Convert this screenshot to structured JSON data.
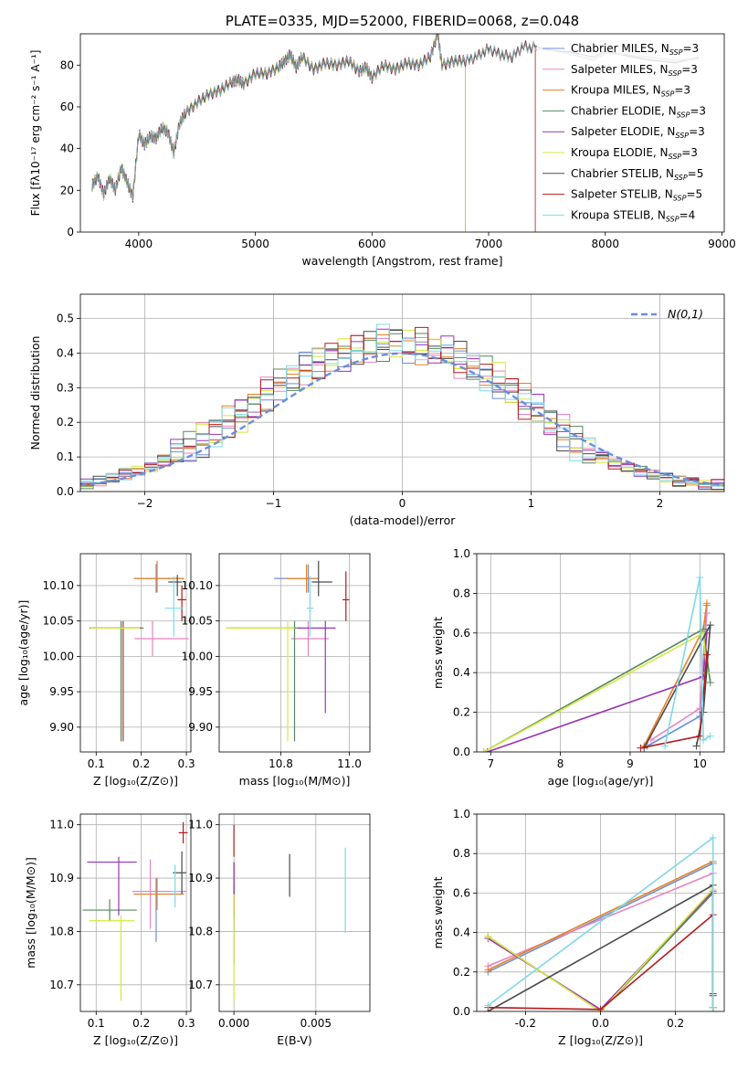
{
  "chart_data": [
    {
      "id": "spectrum",
      "type": "line",
      "title": "PLATE=0335, MJD=52000, FIBERID=0068, z=0.048",
      "xlabel": "wavelength [Angstrom, rest frame]",
      "ylabel": "Flux [fλ10⁻¹⁷ erg cm⁻² s⁻¹ A⁻¹]",
      "xlim": [
        3500,
        9020
      ],
      "ylim": [
        0,
        95
      ],
      "xticks": [
        4000,
        5000,
        6000,
        7000,
        8000,
        9000
      ],
      "yticks": [
        0,
        20,
        40,
        60,
        80
      ],
      "legend_position": "right",
      "data_color": "#808080",
      "data_x": [
        3600,
        3650,
        3700,
        3750,
        3800,
        3850,
        3900,
        3950,
        4000,
        4050,
        4100,
        4150,
        4200,
        4250,
        4300,
        4350,
        4400,
        4500,
        4600,
        4700,
        4800,
        4850,
        4900,
        5000,
        5100,
        5200,
        5250,
        5300,
        5350,
        5400,
        5500,
        5600,
        5700,
        5800,
        5890,
        5950,
        6000,
        6100,
        6200,
        6300,
        6400,
        6500,
        6563,
        6600,
        6700,
        6800,
        6900,
        7000,
        7100,
        7200,
        7300,
        7400
      ],
      "data_y": [
        22,
        27,
        18,
        26,
        20,
        31,
        24,
        17,
        47,
        42,
        46,
        45,
        50,
        48,
        38,
        52,
        57,
        62,
        66,
        68,
        72,
        73,
        71,
        76,
        76,
        79,
        82,
        85,
        79,
        84,
        78,
        81,
        80,
        82,
        77,
        79,
        74,
        80,
        78,
        81,
        80,
        84,
        95,
        80,
        82,
        82,
        84,
        88,
        85,
        84,
        89,
        88
      ],
      "series": [
        {
          "name": "Chabrier MILES, N_SSP=3",
          "color": "#6a8ede",
          "cutoff": null
        },
        {
          "name": "Salpeter MILES, N_SSP=3",
          "color": "#e882c0",
          "cutoff": null
        },
        {
          "name": "Kroupa MILES, N_SSP=3",
          "color": "#e8801e",
          "cutoff": null
        },
        {
          "name": "Chabrier ELODIE, N_SSP=3",
          "color": "#55885d",
          "cutoff": 6800
        },
        {
          "name": "Salpeter ELODIE, N_SSP=3",
          "color": "#9933b3",
          "cutoff": 6800
        },
        {
          "name": "Kroupa ELODIE, N_SSP=3",
          "color": "#d4e83e",
          "cutoff": 6800
        },
        {
          "name": "Chabrier STELIB, N_SSP=5",
          "color": "#4a4a4a",
          "cutoff": null
        },
        {
          "name": "Salpeter STELIB, N_SSP=5",
          "color": "#b31a1a",
          "cutoff": 7400
        },
        {
          "name": "Kroupa STELIB, N_SSP=4",
          "color": "#7fd8e6",
          "cutoff": null
        }
      ]
    },
    {
      "id": "histogram",
      "type": "line",
      "xlabel": "(data-model)/error",
      "ylabel": "Normed distribution",
      "xlim": [
        -2.5,
        2.5
      ],
      "ylim": [
        0,
        0.57
      ],
      "xticks": [
        -2,
        -1,
        0,
        1,
        2
      ],
      "yticks": [
        0.0,
        0.1,
        0.2,
        0.3,
        0.4,
        0.5
      ],
      "grid": true,
      "reference": {
        "label": "N(0,1)",
        "color": "#6a8ede"
      },
      "bin_width": 0.1,
      "bin_start": -2.5,
      "base_values": [
        0.02,
        0.03,
        0.04,
        0.05,
        0.06,
        0.07,
        0.09,
        0.11,
        0.13,
        0.15,
        0.17,
        0.2,
        0.22,
        0.25,
        0.28,
        0.31,
        0.33,
        0.35,
        0.37,
        0.39,
        0.4,
        0.41,
        0.42,
        0.43,
        0.43,
        0.42,
        0.42,
        0.41,
        0.4,
        0.38,
        0.36,
        0.34,
        0.32,
        0.29,
        0.26,
        0.23,
        0.2,
        0.17,
        0.14,
        0.12,
        0.1,
        0.08,
        0.07,
        0.06,
        0.05,
        0.04,
        0.03,
        0.03,
        0.02,
        0.02
      ]
    },
    {
      "id": "age-vs-Z",
      "type": "scatter",
      "xlabel": "Z [log₁₀(Z/Z⊙)]",
      "ylabel": "age  [log₁₀(age/yr)]",
      "xlim": [
        0.065,
        0.31
      ],
      "ylim": [
        9.865,
        10.145
      ],
      "xticks": [
        0.1,
        0.2,
        0.3
      ],
      "yticks": [
        9.9,
        9.95,
        10.0,
        10.05,
        10.1
      ],
      "grid": true,
      "points": [
        {
          "x": 0.233,
          "y": 10.11,
          "xerr": [
            0.05,
            0.06
          ],
          "yerr": [
            0.02,
            0.02
          ]
        },
        {
          "x": 0.225,
          "y": 10.025,
          "xerr": [
            0.04,
            0.08
          ],
          "yerr": [
            0.025,
            0.025
          ]
        },
        {
          "x": 0.235,
          "y": 10.11,
          "xerr": [
            0.05,
            0.06
          ],
          "yerr": [
            0.02,
            0.025
          ]
        },
        {
          "x": 0.155,
          "y": 10.04,
          "xerr": [
            0.07,
            0.05
          ],
          "yerr": [
            0.16,
            0.01
          ]
        },
        {
          "x": 0.16,
          "y": 10.04,
          "xerr": [
            0.07,
            0.04
          ],
          "yerr": [
            0.16,
            0.01
          ]
        },
        {
          "x": 0.157,
          "y": 10.04,
          "xerr": [
            0.07,
            0.04
          ],
          "yerr": [
            0.16,
            0.01
          ]
        },
        {
          "x": 0.28,
          "y": 10.105,
          "xerr": [
            0.02,
            0.01
          ],
          "yerr": [
            0.02,
            0.01
          ]
        },
        {
          "x": 0.29,
          "y": 10.08,
          "xerr": [
            0.01,
            0.01
          ],
          "yerr": [
            0.03,
            0.02
          ]
        },
        {
          "x": 0.272,
          "y": 10.068,
          "xerr": [
            0.02,
            0.02
          ],
          "yerr": [
            0.04,
            0.045
          ]
        }
      ]
    },
    {
      "id": "age-vs-mass",
      "type": "scatter",
      "xlabel": "mass [log₁₀(M/M⊙)]",
      "ylabel": "",
      "xlim": [
        10.62,
        11.06
      ],
      "ylim": [
        9.865,
        10.145
      ],
      "xticks": [
        10.8,
        11.0
      ],
      "yticks": [
        9.9,
        9.95,
        10.0,
        10.05,
        10.1
      ],
      "grid": true,
      "points": [
        {
          "x": 10.88,
          "y": 10.11,
          "xerr": [
            0.1,
            0.03
          ],
          "yerr": [
            0.02,
            0.02
          ]
        },
        {
          "x": 10.88,
          "y": 10.025,
          "xerr": [
            0.05,
            0.06
          ],
          "yerr": [
            0.025,
            0.025
          ]
        },
        {
          "x": 10.875,
          "y": 10.11,
          "xerr": [
            0.06,
            0.03
          ],
          "yerr": [
            0.02,
            0.02
          ]
        },
        {
          "x": 10.84,
          "y": 10.04,
          "xerr": [
            0.2,
            0.02
          ],
          "yerr": [
            0.16,
            0.01
          ]
        },
        {
          "x": 10.93,
          "y": 10.04,
          "xerr": [
            0.08,
            0.03
          ],
          "yerr": [
            0.12,
            0.01
          ]
        },
        {
          "x": 10.82,
          "y": 10.04,
          "xerr": [
            0.18,
            0.02
          ],
          "yerr": [
            0.16,
            0.01
          ]
        },
        {
          "x": 10.91,
          "y": 10.105,
          "xerr": [
            0.02,
            0.04
          ],
          "yerr": [
            0.02,
            0.03
          ]
        },
        {
          "x": 10.99,
          "y": 10.08,
          "xerr": [
            0.01,
            0.01
          ],
          "yerr": [
            0.03,
            0.04
          ]
        },
        {
          "x": 10.885,
          "y": 10.068,
          "xerr": [
            0.01,
            0.01
          ],
          "yerr": [
            0.04,
            0.045
          ]
        }
      ]
    },
    {
      "id": "mass-weight-vs-age",
      "type": "line",
      "xlabel": "age  [log₁₀(age/yr)]",
      "ylabel": "mass weight",
      "xlim": [
        6.8,
        10.35
      ],
      "ylim": [
        0,
        1.0
      ],
      "xticks": [
        7,
        8,
        9,
        10
      ],
      "yticks": [
        0.0,
        0.2,
        0.4,
        0.6,
        0.8,
        1.0
      ],
      "grid": true,
      "lines": [
        {
          "x": [
            9.25,
            10.0,
            10.1
          ],
          "y": [
            0.03,
            0.18,
            0.74
          ]
        },
        {
          "x": [
            9.3,
            10.0,
            10.1
          ],
          "y": [
            0.06,
            0.22,
            0.7
          ]
        },
        {
          "x": [
            9.2,
            10.05,
            10.1
          ],
          "y": [
            0.03,
            0.62,
            0.75
          ]
        },
        {
          "x": [
            6.9,
            10.05,
            10.15
          ],
          "y": [
            0.0,
            0.62,
            0.35
          ]
        },
        {
          "x": [
            6.95,
            10.05,
            10.1
          ],
          "y": [
            0.0,
            0.38,
            0.6
          ]
        },
        {
          "x": [
            6.9,
            10.05,
            10.1
          ],
          "y": [
            0.0,
            0.6,
            0.4
          ]
        },
        {
          "x": [
            9.2,
            10.15,
            10.05,
            9.95
          ],
          "y": [
            0.02,
            0.64,
            0.2,
            0.03
          ]
        },
        {
          "x": [
            9.15,
            10.0,
            10.1
          ],
          "y": [
            0.02,
            0.08,
            0.49
          ]
        },
        {
          "x": [
            9.5,
            10.0,
            10.05,
            10.15
          ],
          "y": [
            0.03,
            0.88,
            0.06,
            0.08
          ]
        }
      ]
    },
    {
      "id": "mass-vs-Z",
      "type": "scatter",
      "xlabel": "Z [log₁₀(Z/Z⊙)]",
      "ylabel": "mass [log₁₀(M/M⊙)]",
      "xlim": [
        0.065,
        0.31
      ],
      "ylim": [
        10.65,
        11.02
      ],
      "xticks": [
        0.1,
        0.2,
        0.3
      ],
      "yticks": [
        10.7,
        10.8,
        10.9,
        11.0
      ],
      "grid": true,
      "points": [
        {
          "x": 0.233,
          "y": 10.87,
          "xerr": [
            0.05,
            0.06
          ],
          "yerr": [
            0.09,
            0.03
          ]
        },
        {
          "x": 0.22,
          "y": 10.875,
          "xerr": [
            0.04,
            0.08
          ],
          "yerr": [
            0.07,
            0.06
          ]
        },
        {
          "x": 0.235,
          "y": 10.87,
          "xerr": [
            0.05,
            0.06
          ],
          "yerr": [
            0.03,
            0.03
          ]
        },
        {
          "x": 0.13,
          "y": 10.84,
          "xerr": [
            0.06,
            0.06
          ],
          "yerr": [
            0.02,
            0.02
          ]
        },
        {
          "x": 0.15,
          "y": 10.93,
          "xerr": [
            0.07,
            0.04
          ],
          "yerr": [
            0.1,
            0.01
          ]
        },
        {
          "x": 0.155,
          "y": 10.82,
          "xerr": [
            0.07,
            0.03
          ],
          "yerr": [
            0.15,
            0.01
          ]
        },
        {
          "x": 0.29,
          "y": 10.91,
          "xerr": [
            0.02,
            0.01
          ],
          "yerr": [
            0.04,
            0.04
          ]
        },
        {
          "x": 0.293,
          "y": 10.985,
          "xerr": [
            0.01,
            0.01
          ],
          "yerr": [
            0.02,
            0.02
          ]
        },
        {
          "x": 0.275,
          "y": 10.875,
          "xerr": [
            0.01,
            0.01
          ],
          "yerr": [
            0.03,
            0.05
          ]
        }
      ]
    },
    {
      "id": "mass-vs-ebv",
      "type": "scatter",
      "xlabel": "E(B-V)",
      "ylabel": "",
      "xlim": [
        -0.0009,
        0.0083
      ],
      "ylim": [
        10.65,
        11.02
      ],
      "xticks": [
        0.0,
        0.005
      ],
      "xtick_labels": [
        "0.000",
        "0.005"
      ],
      "yticks": [
        10.7,
        10.8,
        10.9,
        11.0
      ],
      "grid": true,
      "points": [
        {
          "x": 0.0,
          "y": 10.87,
          "xerr": [
            0,
            0
          ],
          "yerr": [
            0.05,
            0.05
          ]
        },
        {
          "x": 0.0,
          "y": 10.88,
          "xerr": [
            0,
            0
          ],
          "yerr": [
            0.05,
            0.05
          ]
        },
        {
          "x": 0.0,
          "y": 10.88,
          "xerr": [
            0,
            0
          ],
          "yerr": [
            0.05,
            0.05
          ]
        },
        {
          "x": 0.0,
          "y": 10.84,
          "xerr": [
            0,
            0
          ],
          "yerr": [
            0.1,
            0.05
          ]
        },
        {
          "x": 0.0,
          "y": 10.88,
          "xerr": [
            0,
            0
          ],
          "yerr": [
            0.05,
            0.05
          ]
        },
        {
          "x": 0.0,
          "y": 10.82,
          "xerr": [
            0,
            0
          ],
          "yerr": [
            0.15,
            0.05
          ]
        },
        {
          "x": 0.0034,
          "y": 10.905,
          "xerr": [
            0,
            0
          ],
          "yerr": [
            0.04,
            0.04
          ]
        },
        {
          "x": 0.0,
          "y": 10.97,
          "xerr": [
            0,
            0
          ],
          "yerr": [
            0.03,
            0.03
          ]
        },
        {
          "x": 0.0068,
          "y": 10.877,
          "xerr": [
            0,
            0
          ],
          "yerr": [
            0.08,
            0.08
          ]
        }
      ]
    },
    {
      "id": "mass-weight-vs-Z",
      "type": "line",
      "xlabel": "Z [log₁₀(Z/Z⊙)]",
      "ylabel": "mass weight",
      "xlim": [
        -0.33,
        0.33
      ],
      "ylim": [
        0,
        1.0
      ],
      "xticks": [
        -0.2,
        0.0,
        0.2
      ],
      "yticks": [
        0.0,
        0.2,
        0.4,
        0.6,
        0.8,
        1.0
      ],
      "grid": true,
      "lines": [
        {
          "x": [
            -0.3,
            0.3,
            0.3
          ],
          "y": [
            0.2,
            0.75,
            0.02
          ]
        },
        {
          "x": [
            -0.3,
            0.3,
            0.3
          ],
          "y": [
            0.23,
            0.7,
            0.02
          ]
        },
        {
          "x": [
            -0.3,
            0.3,
            0.3
          ],
          "y": [
            0.21,
            0.76,
            0.02
          ]
        },
        {
          "x": [
            -0.3,
            0.0,
            0.3,
            0.3
          ],
          "y": [
            0.38,
            0.0,
            0.6,
            0.0
          ]
        },
        {
          "x": [
            -0.3,
            0.0,
            0.3,
            0.3
          ],
          "y": [
            0.37,
            0.01,
            0.61,
            0.02
          ]
        },
        {
          "x": [
            -0.3,
            0.0,
            0.3,
            0.3
          ],
          "y": [
            0.38,
            0.0,
            0.62,
            0.02
          ]
        },
        {
          "x": [
            -0.3,
            0.3,
            0.3
          ],
          "y": [
            0.0,
            0.64,
            0.09
          ]
        },
        {
          "x": [
            -0.3,
            0.0,
            0.3,
            0.3
          ],
          "y": [
            0.02,
            0.01,
            0.49,
            0.08
          ]
        },
        {
          "x": [
            -0.3,
            0.3,
            0.3
          ],
          "y": [
            0.03,
            0.88,
            0.02
          ]
        }
      ]
    }
  ]
}
